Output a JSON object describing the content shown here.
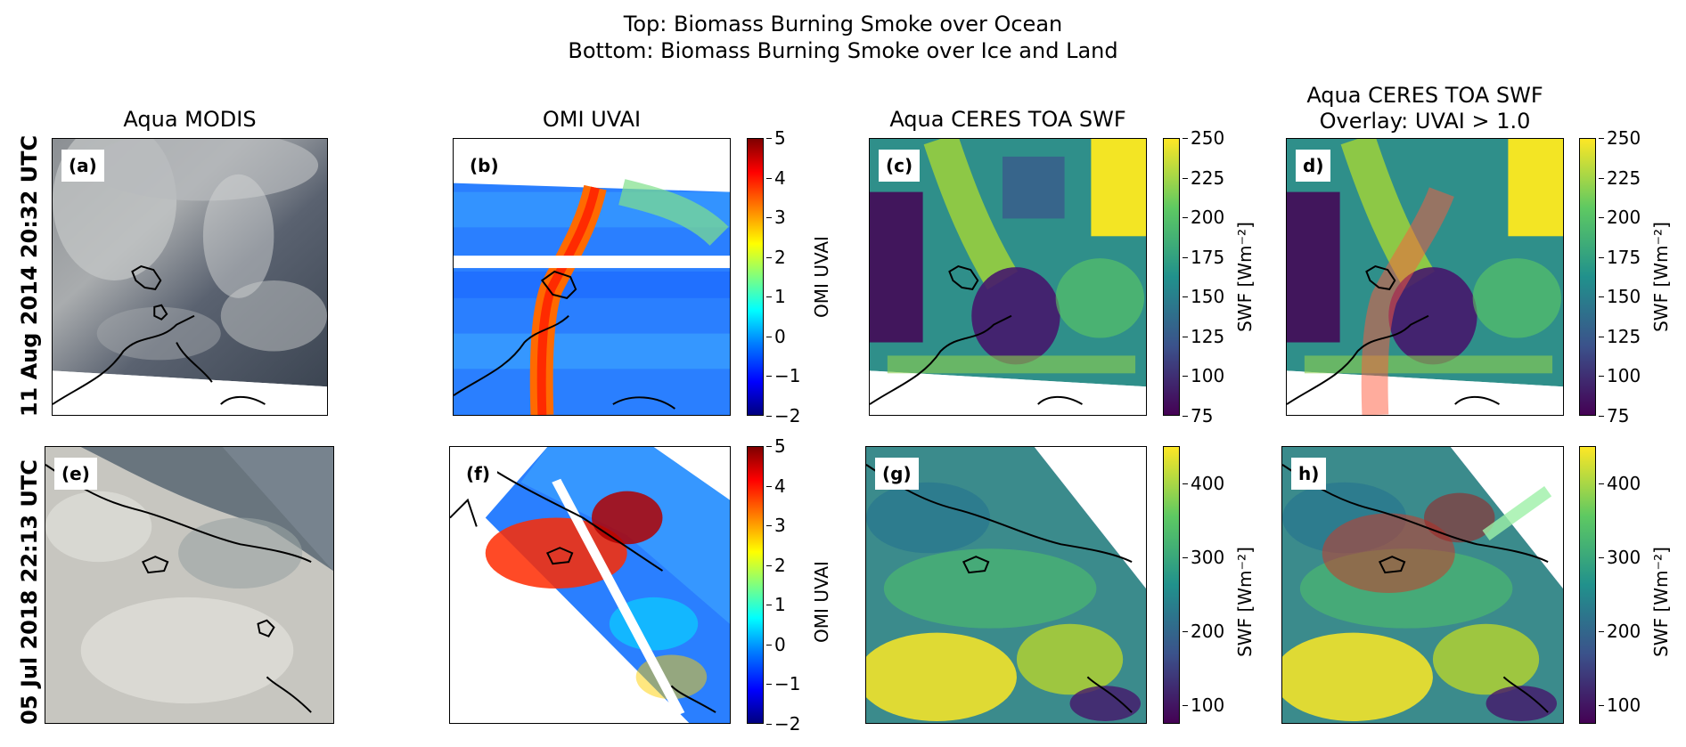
{
  "figure": {
    "suptitle_line1": "Top: Biomass Burning Smoke over Ocean",
    "suptitle_line2": "Bottom: Biomass Burning Smoke over Ice and Land",
    "column_titles": {
      "modis": "Aqua MODIS",
      "omi": "OMI UVAI",
      "ceres": "Aqua CERES TOA SWF",
      "overlay_line1": "Aqua CERES TOA SWF",
      "overlay_line2": "Overlay: UVAI > 1.0"
    },
    "row_labels": {
      "top": "11 Aug 2014 20:32 UTC",
      "bottom": "05 Jul 2018 22:13 UTC"
    },
    "panel_labels": [
      "(a)",
      "(b)",
      "(c)",
      "d)",
      "(e)",
      "(f)",
      "(g)",
      "h)"
    ],
    "colorbars": {
      "uvai": {
        "label": "OMI UVAI",
        "ticks": [
          "5",
          "4",
          "3",
          "2",
          "1",
          "0",
          "−1",
          "−2"
        ],
        "range": [
          -2,
          5
        ],
        "colormap": "jet"
      },
      "swf_top": {
        "label": "SWF [Wm⁻²]",
        "ticks": [
          "250",
          "225",
          "200",
          "175",
          "150",
          "125",
          "100",
          "75"
        ],
        "range": [
          75,
          250
        ],
        "colormap": "viridis"
      },
      "swf_bottom": {
        "label": "SWF [Wm⁻²]",
        "ticks": [
          "400",
          "300",
          "200",
          "100"
        ],
        "range": [
          75,
          450
        ],
        "colormap": "viridis"
      }
    },
    "colors": {
      "jet": [
        "#00007f",
        "#0000ff",
        "#007fff",
        "#00ffff",
        "#7fff7f",
        "#ffff00",
        "#ff7f00",
        "#ff0000",
        "#7f0000"
      ],
      "viridis": [
        "#440154",
        "#3b528b",
        "#21918c",
        "#5ec962",
        "#fde725"
      ],
      "modis_cloud": "#bfc0c0",
      "modis_ocean": "#3d4652",
      "coast": "#000000"
    }
  }
}
